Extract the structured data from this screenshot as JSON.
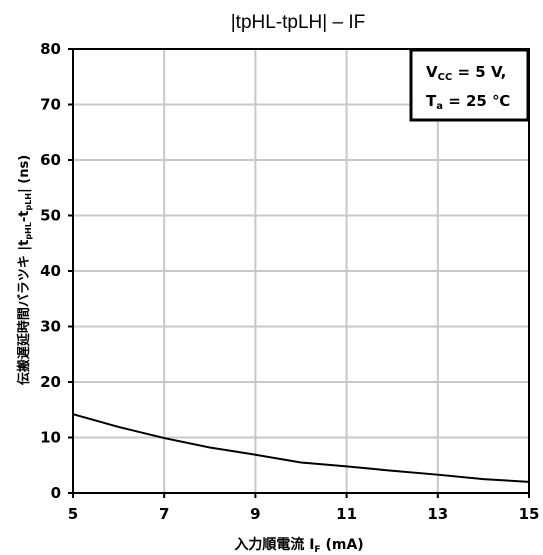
{
  "chart_data": {
    "type": "line",
    "title": "|tpHL-tpLH| – IF",
    "xlabel": "入力順電流 I_F (mA)",
    "ylabel": "伝搬遅延時間バラツキ |t_pHL-t_pLH| (ns)",
    "xlim": [
      5,
      15
    ],
    "ylim": [
      0,
      80
    ],
    "x_ticks": [
      "5",
      "7",
      "9",
      "11",
      "13",
      "15"
    ],
    "y_ticks": [
      "0",
      "10",
      "20",
      "30",
      "40",
      "50",
      "60",
      "70",
      "80"
    ],
    "grid": true,
    "series": [
      {
        "x": [
          5,
          6,
          7,
          8,
          9,
          10,
          11,
          12,
          13,
          14,
          15
        ],
        "values": [
          14.2,
          11.9,
          9.9,
          8.2,
          6.9,
          5.5,
          4.8,
          4.0,
          3.3,
          2.5,
          2.0
        ]
      }
    ],
    "annotation": {
      "line1_prefix": "V",
      "line1_sub": "CC",
      "line1_suffix": " = 5 V,",
      "line2_prefix": "T",
      "line2_sub": "a",
      "line2_suffix": " = 25 ℃"
    },
    "labels": {
      "xlabel_prefix": "入力順電流 I",
      "xlabel_sub": "F",
      "xlabel_suffix": " (mA)",
      "ylabel_prefix": "伝搬遅延時間バラツキ  |t",
      "ylabel_sub1": "pHL",
      "ylabel_mid": "-t",
      "ylabel_sub2": "pLH",
      "ylabel_suffix": "|  (ns)"
    }
  }
}
